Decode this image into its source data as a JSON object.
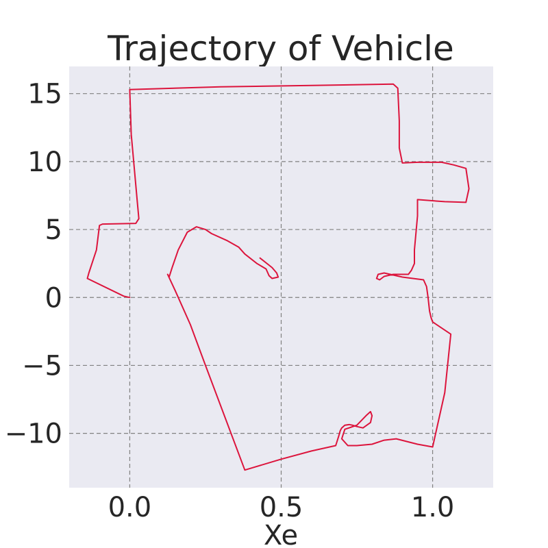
{
  "chart_data": {
    "type": "line",
    "title": "Trajectory of Vehicle",
    "xlabel": "Xe",
    "ylabel": "",
    "xlim": [
      -0.2,
      1.2
    ],
    "ylim": [
      -14.0,
      17.0
    ],
    "xticks": [
      0.0,
      0.5,
      1.0
    ],
    "xtick_labels": [
      "0.0",
      "0.5",
      "1.0"
    ],
    "yticks": [
      -10,
      -5,
      0,
      5,
      10,
      15
    ],
    "ytick_labels": [
      "−10",
      "−5",
      "0",
      "5",
      "10",
      "15"
    ],
    "grid": true,
    "series": [
      {
        "color": "#dc143c",
        "x": [
          0.0,
          -0.02,
          -0.14,
          -0.135,
          -0.11,
          -0.1,
          -0.09,
          0.02,
          0.03,
          0.025,
          0.005,
          0.0,
          0.3,
          0.6,
          0.87,
          0.885,
          0.89,
          0.89,
          0.9,
          0.95,
          1.03,
          1.07,
          1.11,
          1.12,
          1.11,
          1.04,
          0.95,
          0.95,
          0.94,
          0.94,
          0.93,
          0.92,
          0.87,
          0.84,
          0.825,
          0.815,
          0.82,
          0.84,
          0.86,
          0.9,
          0.97,
          0.98,
          0.985,
          0.99,
          0.995,
          1.0,
          1.06,
          1.04,
          1.0,
          0.95,
          0.88,
          0.84,
          0.8,
          0.75,
          0.72,
          0.7,
          0.71,
          0.75,
          0.78,
          0.795,
          0.8,
          0.795,
          0.77,
          0.75,
          0.735,
          0.725,
          0.71,
          0.7,
          0.695,
          0.69,
          0.68,
          0.6,
          0.5,
          0.38,
          0.25,
          0.2,
          0.15,
          0.125,
          0.13,
          0.14,
          0.16,
          0.19,
          0.22,
          0.25,
          0.27,
          0.32,
          0.36,
          0.38,
          0.42,
          0.45,
          0.46,
          0.47,
          0.49,
          0.485,
          0.47,
          0.43
        ],
        "y": [
          0.0,
          0.1,
          1.4,
          1.8,
          3.5,
          5.3,
          5.4,
          5.45,
          5.8,
          7.0,
          12.0,
          15.3,
          15.5,
          15.6,
          15.7,
          15.4,
          13.0,
          11.0,
          9.9,
          9.95,
          9.95,
          9.75,
          9.5,
          8.0,
          7.0,
          7.05,
          7.2,
          6.0,
          3.5,
          2.5,
          2.0,
          1.7,
          1.7,
          1.55,
          1.3,
          1.4,
          1.7,
          1.8,
          1.7,
          1.5,
          1.3,
          0.8,
          0.0,
          -1.0,
          -1.5,
          -1.8,
          -2.7,
          -7.0,
          -11.0,
          -10.8,
          -10.4,
          -10.5,
          -10.8,
          -10.9,
          -10.9,
          -10.4,
          -9.7,
          -9.4,
          -8.7,
          -8.4,
          -8.7,
          -9.2,
          -9.6,
          -9.5,
          -9.4,
          -9.35,
          -9.4,
          -9.6,
          -9.8,
          -10.2,
          -10.9,
          -11.3,
          -11.9,
          -12.7,
          -5.0,
          -2.0,
          0.5,
          1.7,
          1.5,
          2.2,
          3.5,
          4.8,
          5.2,
          5.0,
          4.7,
          4.2,
          3.7,
          3.2,
          2.5,
          2.1,
          1.6,
          1.4,
          1.5,
          1.8,
          2.2,
          2.9
        ]
      }
    ]
  }
}
